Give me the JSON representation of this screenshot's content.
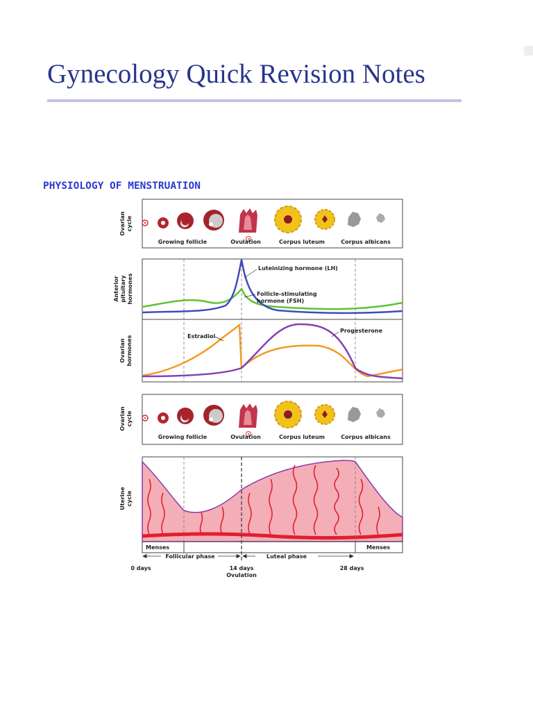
{
  "header": {
    "title": "Gynecology Quick Revision Notes"
  },
  "section": {
    "heading": "PHYSIOLOGY OF MENSTRUATION"
  },
  "figure": {
    "ovarian_panel_1": {
      "label": [
        "Ovarian",
        "cycle"
      ],
      "stages": [
        "Growing follicle",
        "Ovulation",
        "Corpus luteum",
        "Corpus albicans"
      ]
    },
    "pituitary_panel": {
      "label": [
        "Anterior",
        "pituitary",
        "hormones"
      ],
      "lh": "Luteinizing hormone (LH)",
      "fsh": [
        "Follicle-stimulating",
        "hormone (FSH)"
      ]
    },
    "ovarian_hormones_panel": {
      "label": [
        "Ovarian",
        "hormones"
      ],
      "estradiol": "Estradiol",
      "progesterone": "Progesterone"
    },
    "ovarian_panel_2": {
      "label": [
        "Ovarian",
        "cycle"
      ],
      "stages": [
        "Growing follicle",
        "Ovulation",
        "Corpus luteum",
        "Corpus albicans"
      ]
    },
    "uterine_panel": {
      "label": [
        "Uterine",
        "cycle"
      ],
      "menses": [
        "Menses",
        "Menses"
      ],
      "phases": [
        "Follicular phase",
        "Luteal phase"
      ],
      "days": [
        "0 days",
        "14 days",
        "28 days"
      ],
      "ovulation": "Ovulation"
    }
  }
}
